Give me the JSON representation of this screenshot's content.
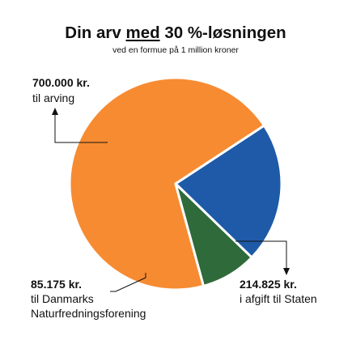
{
  "chart_data": {
    "type": "pie",
    "title": "Din arv med 30 %-løsningen",
    "title_parts": [
      "Din arv ",
      "med",
      " 30 %-løsningen"
    ],
    "subtitle": "ved en formue på 1 million kroner",
    "slices": [
      {
        "value": 700000,
        "amount_label": "700.000 kr.",
        "desc_lines": [
          "til arving"
        ],
        "color": "#F78B31"
      },
      {
        "value": 214825,
        "amount_label": "214.825 kr.",
        "desc_lines": [
          "i afgift til Staten"
        ],
        "color": "#1E5AA8"
      },
      {
        "value": 85175,
        "amount_label": "85.175 kr.",
        "desc_lines": [
          "til Danmarks",
          "Naturfredningsforening"
        ],
        "color": "#2F6A3A"
      }
    ]
  }
}
